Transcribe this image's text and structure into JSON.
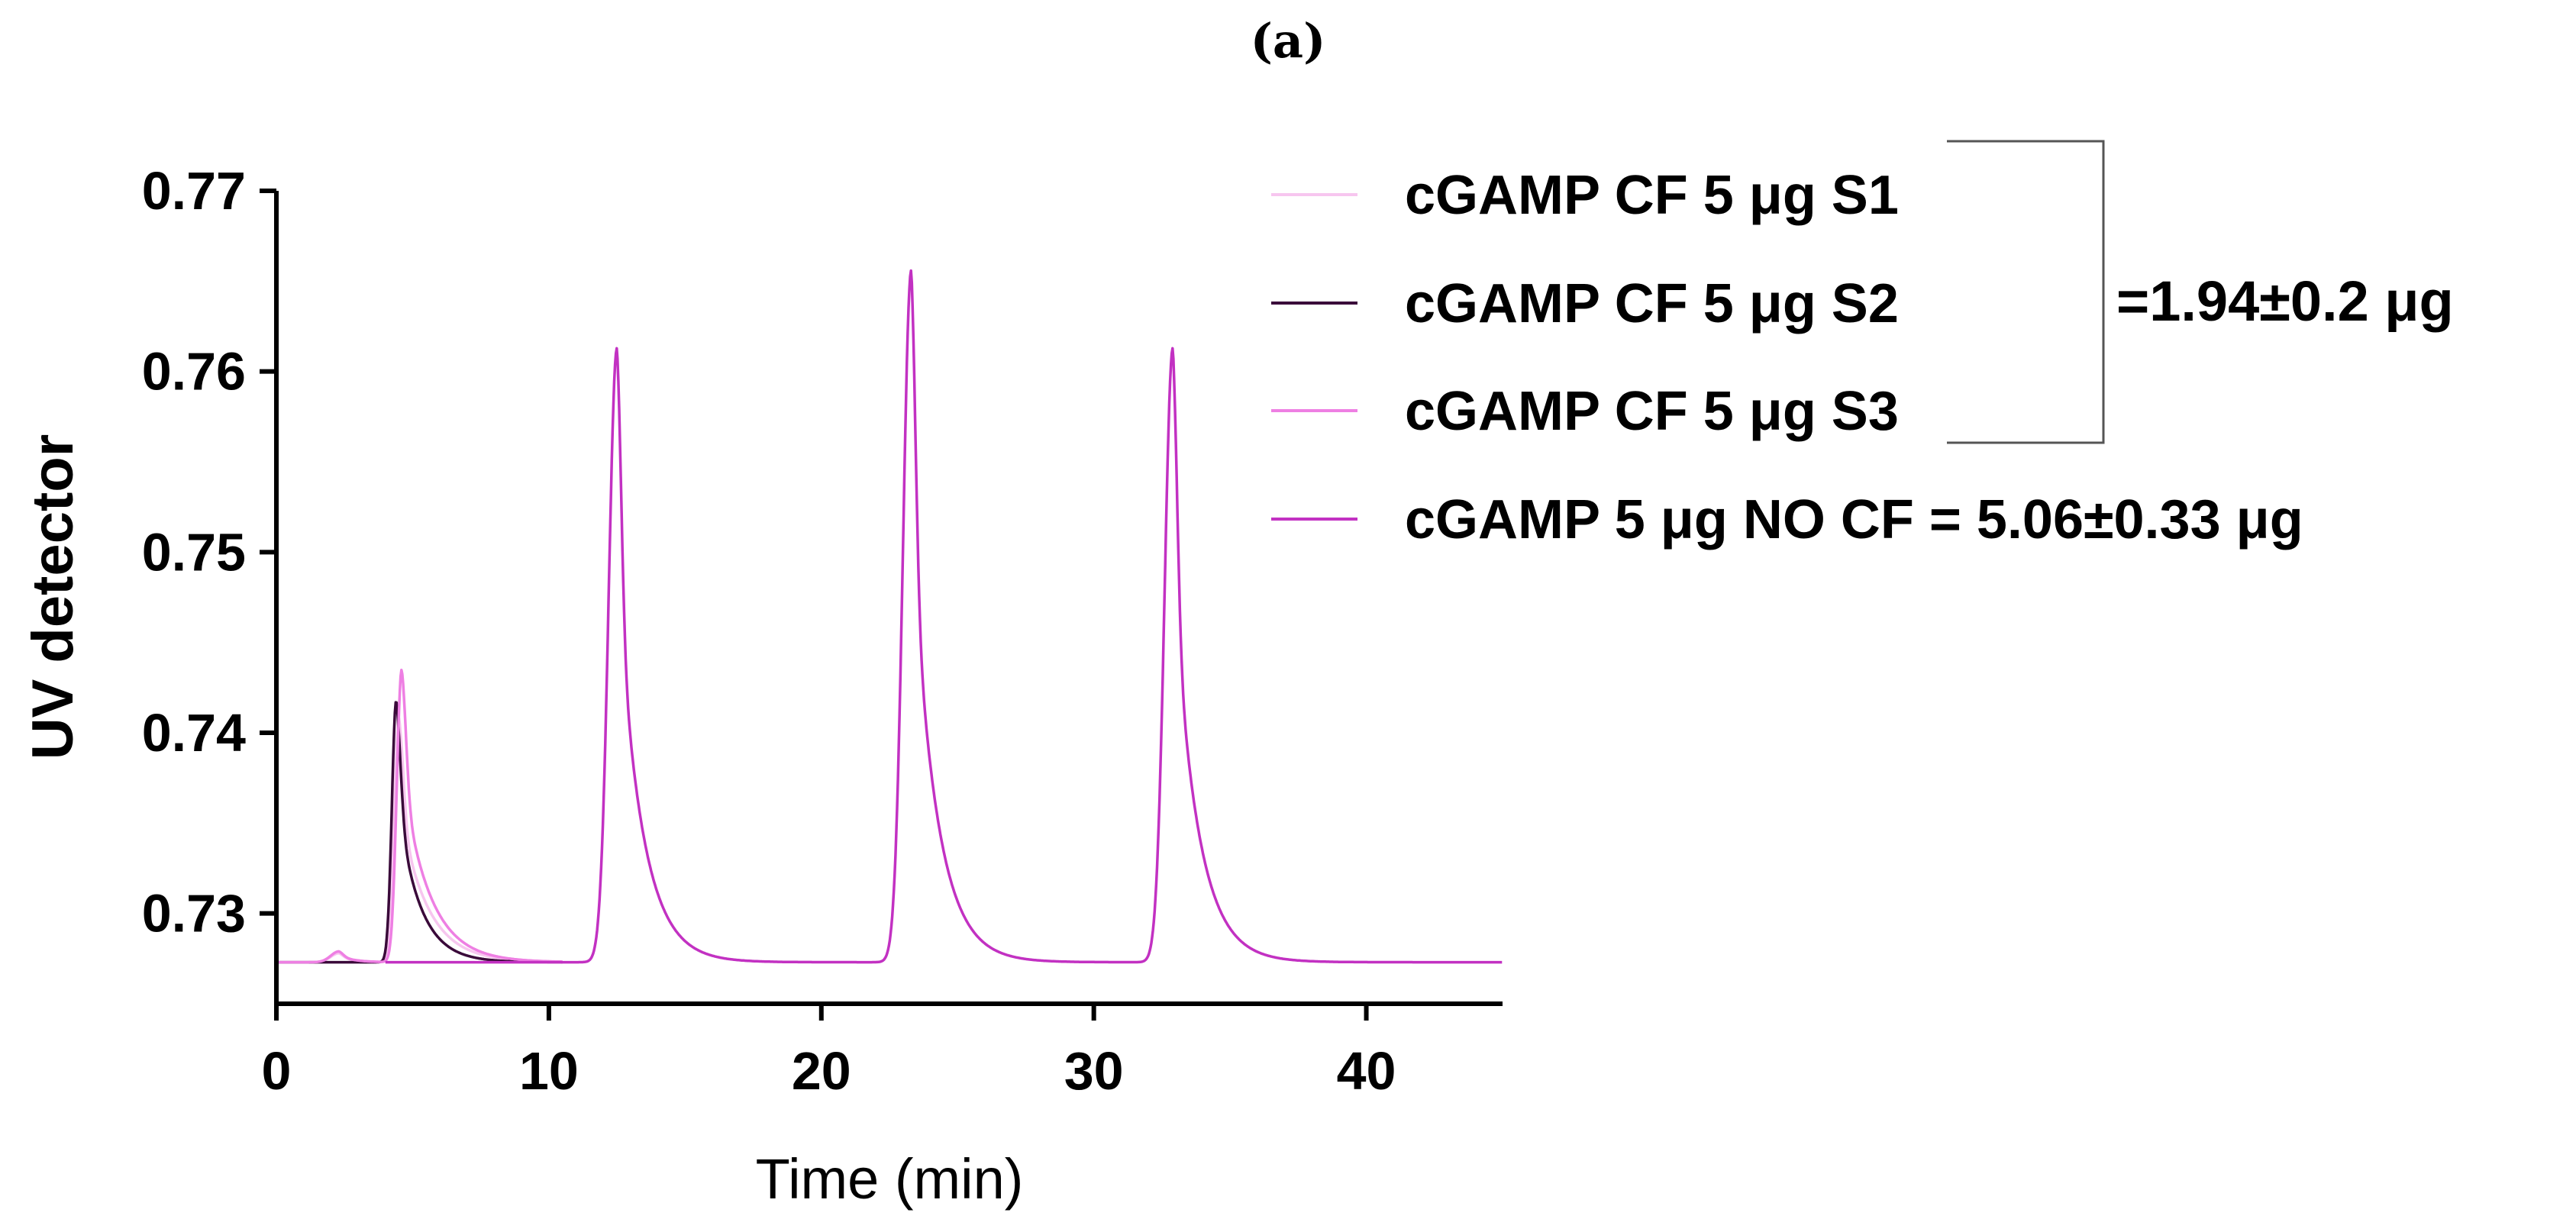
{
  "panel_label": "(a)",
  "chart_data": {
    "type": "line",
    "title": "",
    "xlabel": "Time (min)",
    "ylabel": "UV detector",
    "xlim": [
      0,
      45
    ],
    "ylim": [
      0.725,
      0.77
    ],
    "x_ticks": [
      0,
      10,
      20,
      30,
      40
    ],
    "x_tick_labels": [
      "0",
      "10",
      "20",
      "30",
      "40"
    ],
    "y_ticks": [
      0.73,
      0.74,
      0.75,
      0.76,
      0.77
    ],
    "y_tick_labels": [
      "0.73",
      "0.74",
      "0.75",
      "0.76",
      "0.77"
    ],
    "grid": false,
    "legend_position": "top-right",
    "baseline": 0.7273,
    "series": [
      {
        "name": "cGAMP CF 5 μg S1",
        "color": "#f7c6ef",
        "end_x": 10.5,
        "peaks": [
          {
            "x": 2.3,
            "height": 0.0005,
            "rise": 0.3,
            "tail": 0.5
          },
          {
            "x": 4.5,
            "height": 0.0135,
            "rise": 0.18,
            "tail": 1.0
          }
        ]
      },
      {
        "name": "cGAMP CF 5 μg S2",
        "color": "#3a0a3a",
        "end_x": 10.5,
        "peaks": [
          {
            "x": 4.4,
            "height": 0.0145,
            "rise": 0.16,
            "tail": 0.8
          }
        ]
      },
      {
        "name": "cGAMP CF 5 μg S3",
        "color": "#ee7fe3",
        "end_x": 10.5,
        "peaks": [
          {
            "x": 2.3,
            "height": 0.0006,
            "rise": 0.3,
            "tail": 0.5
          },
          {
            "x": 4.6,
            "height": 0.0162,
            "rise": 0.18,
            "tail": 1.0
          }
        ]
      },
      {
        "name": "cGAMP 5 μg NO CF = 5.06±0.33 μg",
        "color": "#c231c2",
        "start_x": 4.0,
        "end_x": 45,
        "peaks": [
          {
            "x": 12.5,
            "height": 0.034,
            "rise": 0.3,
            "tail": 0.85
          },
          {
            "x": 23.3,
            "height": 0.0383,
            "rise": 0.3,
            "tail": 0.85
          },
          {
            "x": 32.9,
            "height": 0.034,
            "rise": 0.3,
            "tail": 0.85
          }
        ]
      }
    ],
    "annotation": "=1.94±0.2 μg"
  }
}
